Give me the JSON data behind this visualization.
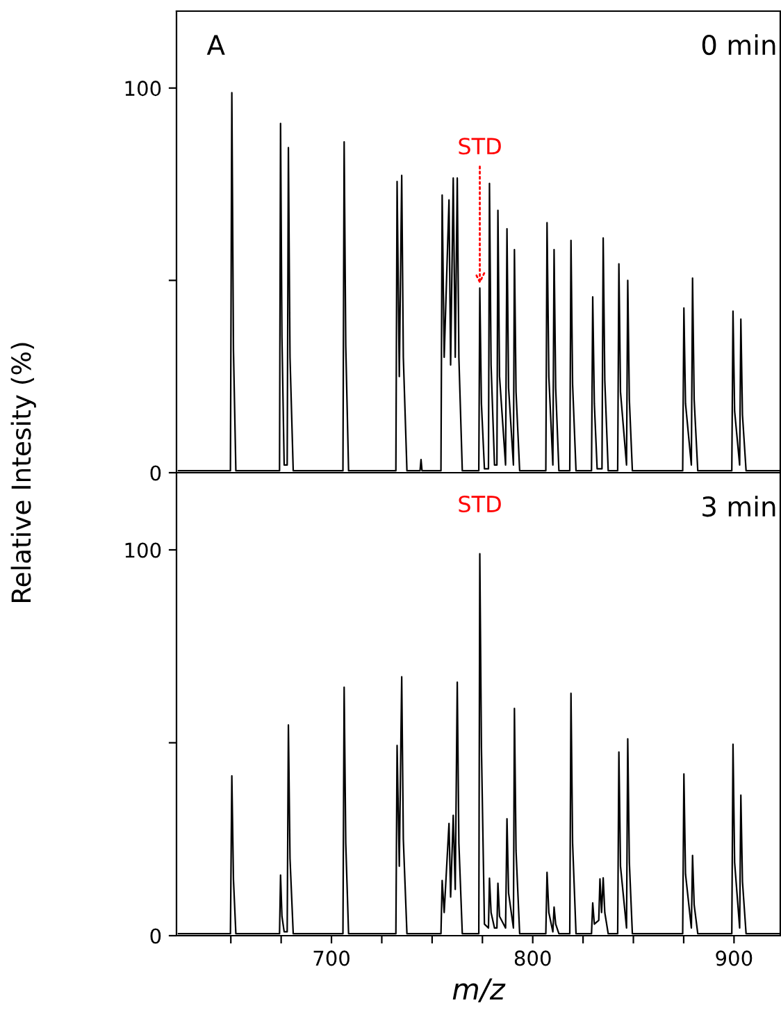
{
  "chart_data": [
    {
      "type": "line",
      "ylabel": "Relative Intesity (%)",
      "annotations": [
        "A",
        "0 min",
        {
          "text": "STD",
          "x": 773.7,
          "y": 48
        }
      ],
      "series": [
        {
          "color": "#000000",
          "x": [
            624,
            649.8,
            650.5,
            651.3,
            652.5,
            674.2,
            674.7,
            675.4,
            676.5,
            678,
            678.6,
            679.4,
            681,
            705.7,
            706.3,
            707.1,
            708.5,
            732,
            732.6,
            733.7,
            734.9,
            735.7,
            737.5,
            744,
            744.5,
            745,
            754.4,
            755,
            756,
            758.4,
            759.2,
            760.5,
            761.5,
            762.5,
            763.3,
            765,
            773.2,
            773.7,
            774.5,
            776,
            778,
            778.5,
            779.3,
            781,
            782.2,
            782.7,
            783.5,
            786.5,
            787.2,
            788,
            790.4,
            790.9,
            791.7,
            793.5,
            806.5,
            807.1,
            808,
            810,
            810.6,
            811.4,
            813,
            818.4,
            819,
            819.8,
            821.5,
            829.2,
            829.8,
            830.6,
            832,
            834.4,
            835,
            835.8,
            837.5,
            842.2,
            842.8,
            843.6,
            846.6,
            847.2,
            848,
            849.5,
            874.5,
            875.1,
            875.9,
            878.8,
            879.4,
            880.2,
            882,
            898.9,
            899.5,
            900.3,
            902.8,
            903.4,
            904.2,
            906,
            923
          ],
          "values": [
            0.5,
            0.5,
            98.8,
            32,
            0.5,
            0.5,
            90.8,
            35,
            2,
            2,
            84.5,
            30,
            0.5,
            0.5,
            86,
            33,
            0.5,
            0.5,
            75.7,
            25,
            77.3,
            30,
            0.5,
            0.5,
            3.4,
            0.5,
            0.5,
            72.2,
            30,
            70.9,
            28,
            76.6,
            30,
            76.6,
            30,
            0.5,
            0.5,
            48,
            18,
            1,
            1,
            75.2,
            28,
            2,
            2,
            68.2,
            25,
            2,
            63.4,
            22,
            2,
            58,
            21,
            0.5,
            0.5,
            65,
            25,
            2,
            58,
            22,
            0.5,
            0.5,
            60.4,
            23,
            0.5,
            0.5,
            45.7,
            18,
            1,
            1,
            61,
            24,
            0.5,
            0.5,
            54.3,
            21,
            2,
            50,
            19,
            0.5,
            0.5,
            42.8,
            18,
            2,
            50.6,
            19,
            0.5,
            0.5,
            42,
            16,
            2,
            39.9,
            15,
            0.5,
            0.5
          ]
        }
      ],
      "xlim": [
        623,
        923
      ],
      "xticks": [
        {
          "value": 650,
          "label": null
        },
        {
          "value": 675,
          "label": null
        },
        {
          "value": 700,
          "label": null
        },
        {
          "value": 725,
          "label": null
        },
        {
          "value": 750,
          "label": null
        },
        {
          "value": 775,
          "label": null
        },
        {
          "value": 800,
          "label": null
        },
        {
          "value": 825,
          "label": null
        },
        {
          "value": 850,
          "label": null
        },
        {
          "value": 875,
          "label": null
        },
        {
          "value": 900,
          "label": null
        }
      ],
      "ylim": [
        0,
        120
      ],
      "yticks": [
        0,
        {
          "value": 50,
          "label": null
        },
        100
      ],
      "tick_labels": "y",
      "grid": false,
      "legend": false,
      "marker": "none",
      "line_style": "solid"
    },
    {
      "type": "line",
      "xlabel": "m/z",
      "annotations": [
        "3 min",
        {
          "text": "STD",
          "x": 773.7,
          "y": 99
        }
      ],
      "series": [
        {
          "color": "#000000",
          "x": [
            624,
            649.8,
            650.5,
            651.3,
            652.5,
            674.2,
            674.7,
            675.4,
            676.5,
            678,
            678.6,
            679.4,
            681,
            705.7,
            706.3,
            707.1,
            708.5,
            732,
            732.6,
            733.7,
            734.9,
            735.7,
            737.5,
            754.4,
            755,
            756,
            758.4,
            759.2,
            760.5,
            761.5,
            762.5,
            763.3,
            765,
            773.2,
            773.7,
            774.5,
            776,
            778,
            778.5,
            779.3,
            781,
            782.2,
            782.7,
            783.5,
            786.5,
            787.2,
            788,
            790.4,
            790.9,
            791.7,
            793.5,
            806.5,
            807.1,
            808,
            810,
            810.6,
            811.4,
            813,
            818.4,
            819,
            819.8,
            821.5,
            829.2,
            829.8,
            830.6,
            832.8,
            833.4,
            834.2,
            835,
            835.8,
            837.5,
            842.2,
            842.8,
            843.6,
            846.6,
            847.2,
            848,
            849.5,
            874.5,
            875.1,
            875.9,
            878.8,
            879.4,
            880.2,
            882,
            898.9,
            899.5,
            900.3,
            902.8,
            903.4,
            904.2,
            906,
            923
          ],
          "values": [
            0.5,
            0.5,
            41.4,
            14.6,
            0.5,
            0.5,
            15.7,
            5,
            1,
            1,
            54.6,
            20,
            0.5,
            0.5,
            64.4,
            24,
            0.5,
            0.5,
            49.3,
            18,
            67.1,
            25,
            0.5,
            0.5,
            14.3,
            6,
            29.1,
            10,
            31.2,
            12,
            65.7,
            24,
            0.5,
            0.5,
            99,
            49,
            3,
            2,
            14.9,
            6,
            2,
            2,
            13.6,
            5,
            2,
            30.3,
            11,
            2,
            58.9,
            22,
            0.5,
            0.5,
            16.4,
            6,
            1,
            7.4,
            3,
            0.5,
            0.5,
            62.8,
            24,
            0.5,
            0.5,
            8.5,
            3,
            4,
            14.7,
            6,
            15,
            6,
            0.5,
            0.5,
            47.6,
            18,
            2,
            51,
            19,
            0.5,
            0.5,
            41.9,
            16,
            2,
            20.8,
            8,
            0.5,
            0.5,
            49.6,
            19,
            2,
            36.4,
            14,
            0.5,
            0.5
          ]
        }
      ],
      "xlim": [
        623,
        923
      ],
      "xticks": [
        {
          "value": 650,
          "label": null
        },
        {
          "value": 675,
          "label": null
        },
        700,
        {
          "value": 725,
          "label": null
        },
        {
          "value": 750,
          "label": null
        },
        {
          "value": 775,
          "label": null
        },
        800,
        {
          "value": 825,
          "label": null
        },
        {
          "value": 850,
          "label": null
        },
        {
          "value": 875,
          "label": null
        },
        900
      ],
      "ylim": [
        0,
        120
      ],
      "yticks": [
        0,
        {
          "value": 50,
          "label": null
        },
        100
      ],
      "grid": false,
      "legend": false,
      "marker": "none",
      "line_style": "solid"
    }
  ]
}
